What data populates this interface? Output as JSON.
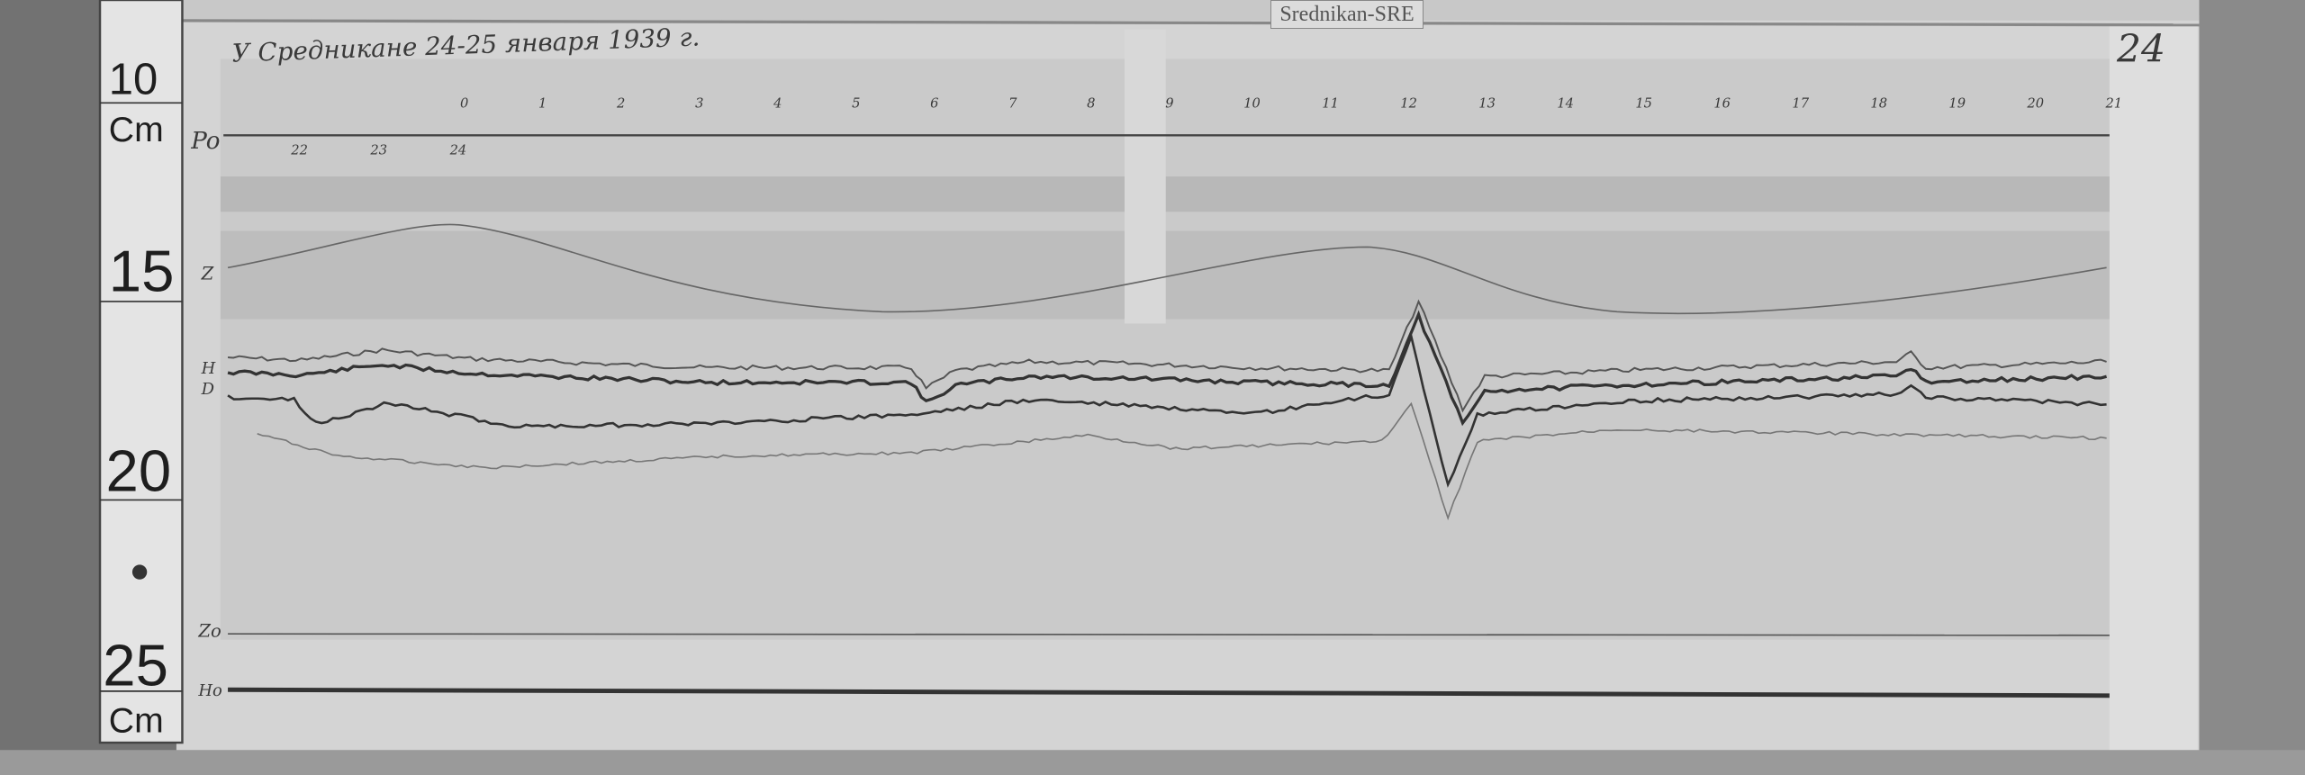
{
  "label_tag": "Srednikan-SRE",
  "title": "У Средникане 24-25 января 1939 г.",
  "sheet_number": "24",
  "ruler": {
    "marks": [
      "10",
      "Cm",
      "15",
      "20",
      "25",
      "Cm"
    ]
  },
  "trace_labels": {
    "po": "Po",
    "z": "Z",
    "h": "H",
    "d": "D",
    "zo": "Zo",
    "ho": "Ho"
  },
  "hour_ticks_top": [
    "0",
    "1",
    "2",
    "3",
    "4",
    "5",
    "6",
    "7",
    "8",
    "9",
    "10",
    "11",
    "12",
    "13",
    "14",
    "15",
    "16",
    "17",
    "18",
    "19",
    "20",
    "21"
  ],
  "hour_ticks_bottom": [
    "22",
    "23",
    "24"
  ],
  "colors": {
    "paper": "#d6d6d6",
    "band": "#bdbdbd",
    "ink": "#3a3a3a",
    "background": "#6e6e6e"
  }
}
